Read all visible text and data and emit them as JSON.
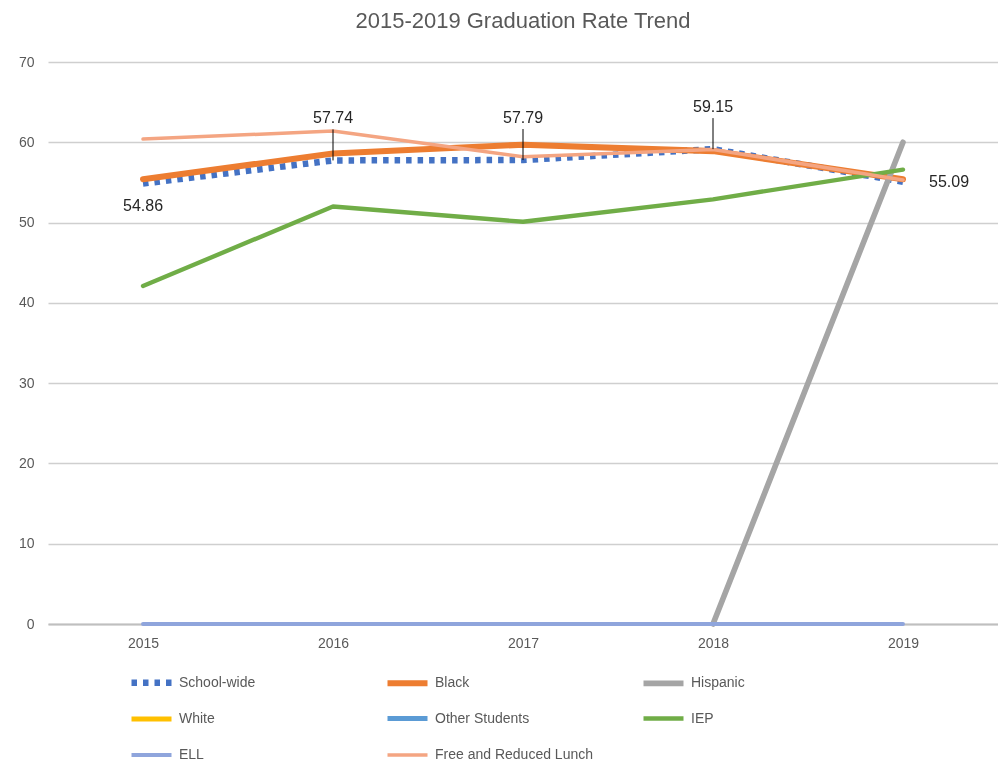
{
  "chart_data": {
    "type": "line",
    "title": "2015-2019 Graduation Rate Trend",
    "categories": [
      "2015",
      "2016",
      "2017",
      "2018",
      "2019"
    ],
    "ylim": [
      0,
      70
    ],
    "yticks": [
      0,
      10,
      20,
      30,
      40,
      50,
      60,
      70
    ],
    "grid": "y",
    "legend": "bottom",
    "series": [
      {
        "name": "School-wide",
        "color": "#4472c4",
        "line_style": "dotted",
        "values": [
          54.86,
          57.74,
          57.79,
          59.15,
          55.09
        ],
        "value_labels": [
          "54.86",
          "57.74",
          "57.79",
          "59.15",
          "55.09"
        ]
      },
      {
        "name": "Black",
        "color": "#ed7d31",
        "values": [
          55.4,
          58.6,
          59.7,
          58.9,
          55.4
        ]
      },
      {
        "name": "Hispanic",
        "color": "#a5a5a5",
        "values": [
          null,
          null,
          null,
          0,
          60
        ]
      },
      {
        "name": "White",
        "color": "#ffc000",
        "values": [
          null,
          null,
          null,
          null,
          null
        ]
      },
      {
        "name": "Other Students",
        "color": "#5b9bd5",
        "values": [
          null,
          null,
          null,
          null,
          null
        ]
      },
      {
        "name": "IEP",
        "color": "#70ad47",
        "values": [
          42.1,
          52.0,
          50.1,
          52.9,
          56.6
        ]
      },
      {
        "name": "ELL",
        "color": "#8fa5dc",
        "values": [
          0,
          0,
          0,
          0,
          0
        ]
      },
      {
        "name": "Free and Reduced Lunch",
        "color": "#f4a582",
        "values": [
          60.4,
          61.4,
          58.2,
          59.1,
          55.3
        ]
      }
    ]
  }
}
